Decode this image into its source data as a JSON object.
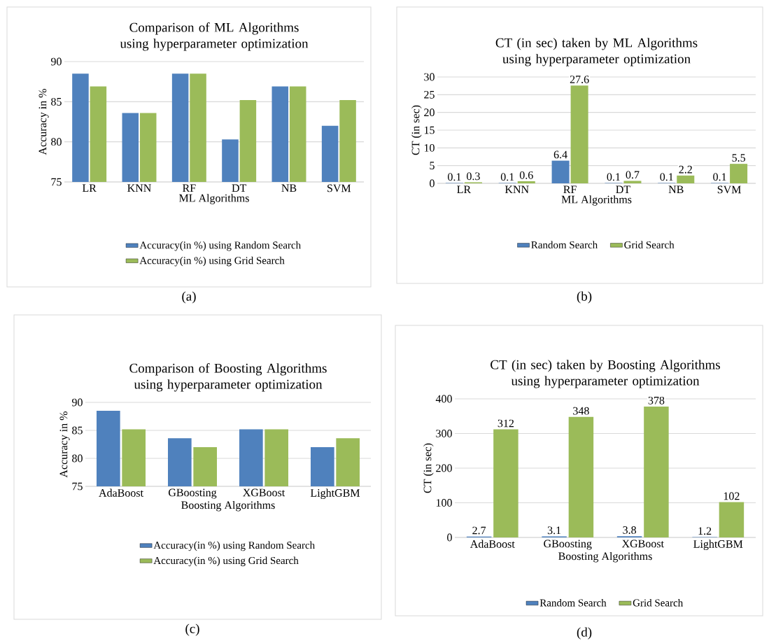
{
  "chart_data": [
    {
      "type": "bar",
      "title": "Comparison of ML Algorithms using hyperparameter optimization",
      "xlabel": "ML Algorithms",
      "ylabel": "Accuracy in %",
      "categories": [
        "LR",
        "KNN",
        "RF",
        "DT",
        "NB",
        "SVM"
      ],
      "series": [
        {
          "name": "Accuracy(in %) using Random Search",
          "color": "#4f81bd",
          "values": [
            88.5,
            83.6,
            88.5,
            80.3,
            86.9,
            82.0
          ]
        },
        {
          "name": "Accuracy(in %) using Grid Search",
          "color": "#9bbb59",
          "values": [
            86.9,
            83.6,
            88.5,
            85.2,
            86.9,
            85.2
          ]
        }
      ],
      "ylim": [
        75,
        90
      ],
      "yticks": [
        75,
        80,
        85,
        90
      ],
      "grid": "y",
      "legend": "bottom",
      "annotations": [
        "(a)"
      ]
    },
    {
      "type": "bar",
      "title": "CT (in sec) taken by ML Algorithms using hyperparameter optimization",
      "xlabel": "ML Algorithms",
      "ylabel": "CT (in sec)",
      "categories": [
        "LR",
        "KNN",
        "RF",
        "DT",
        "NB",
        "SVM"
      ],
      "series": [
        {
          "name": "Random Search",
          "color": "#4f81bd",
          "values": [
            0.1,
            0.1,
            6.4,
            0.1,
            0.1,
            0.1
          ]
        },
        {
          "name": "Grid Search",
          "color": "#9bbb59",
          "values": [
            0.3,
            0.6,
            27.6,
            0.7,
            2.2,
            5.5
          ]
        }
      ],
      "ylim": [
        0,
        30
      ],
      "yticks": [
        0,
        5,
        10,
        15,
        20,
        25,
        30
      ],
      "grid": "y",
      "data_labels": true,
      "legend": "bottom",
      "annotations": [
        "(b)"
      ]
    },
    {
      "type": "bar",
      "title": "Comparison of Boosting Algorithms using hyperparameter optimization",
      "xlabel": "Boosting Algorithms",
      "ylabel": "Accuracy in %",
      "categories": [
        "AdaBoost",
        "GBoosting",
        "XGBoost",
        "LightGBM"
      ],
      "series": [
        {
          "name": "Accuracy(in %) using Random Search",
          "color": "#4f81bd",
          "values": [
            88.5,
            83.6,
            85.2,
            82.0
          ]
        },
        {
          "name": "Accuracy(in %) using Grid Search",
          "color": "#9bbb59",
          "values": [
            85.2,
            82.0,
            85.2,
            83.6
          ]
        }
      ],
      "ylim": [
        75,
        90
      ],
      "yticks": [
        75,
        80,
        85,
        90
      ],
      "grid": "y",
      "legend": "bottom",
      "annotations": [
        "(c)"
      ]
    },
    {
      "type": "bar",
      "title": "CT (in sec) taken by Boosting Algorithms using hyperparameter optimization",
      "xlabel": "Boosting Algorithms",
      "ylabel": "CT (in sec)",
      "categories": [
        "AdaBoost",
        "GBoosting",
        "XGBoost",
        "LightGBM"
      ],
      "series": [
        {
          "name": "Random Search",
          "color": "#4f81bd",
          "values": [
            2.7,
            3.1,
            3.8,
            1.2
          ]
        },
        {
          "name": "Grid Search",
          "color": "#9bbb59",
          "values": [
            312,
            348,
            378,
            102
          ]
        }
      ],
      "ylim": [
        0,
        400
      ],
      "yticks": [
        0,
        100,
        200,
        300,
        400
      ],
      "grid": "y",
      "data_labels": true,
      "legend": "bottom",
      "annotations": [
        "(d)"
      ]
    }
  ]
}
